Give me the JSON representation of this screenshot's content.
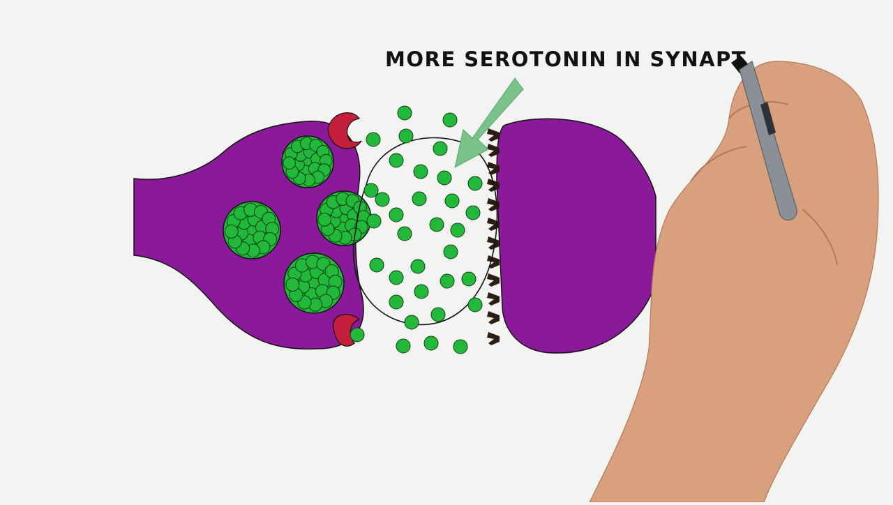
{
  "annotation": {
    "text": "MORE SEROTONIN IN SYNAPT"
  },
  "colors": {
    "background": "#f3f3f1",
    "neuron": "#8a1a9a",
    "serotonin": "#22b83a",
    "transporter": "#c41e3a",
    "receptor": "#2b1d14",
    "arrow": "#79c38a",
    "outline": "#111111",
    "skin": "#d9a07d",
    "marker_body": "#8a9096"
  },
  "icons": [
    "presynaptic-neuron-icon",
    "postsynaptic-neuron-icon",
    "synaptic-vesicle-icon",
    "serotonin-molecule-icon",
    "reuptake-transporter-icon",
    "receptor-icon",
    "arrow-icon",
    "hand-icon",
    "marker-icon"
  ]
}
